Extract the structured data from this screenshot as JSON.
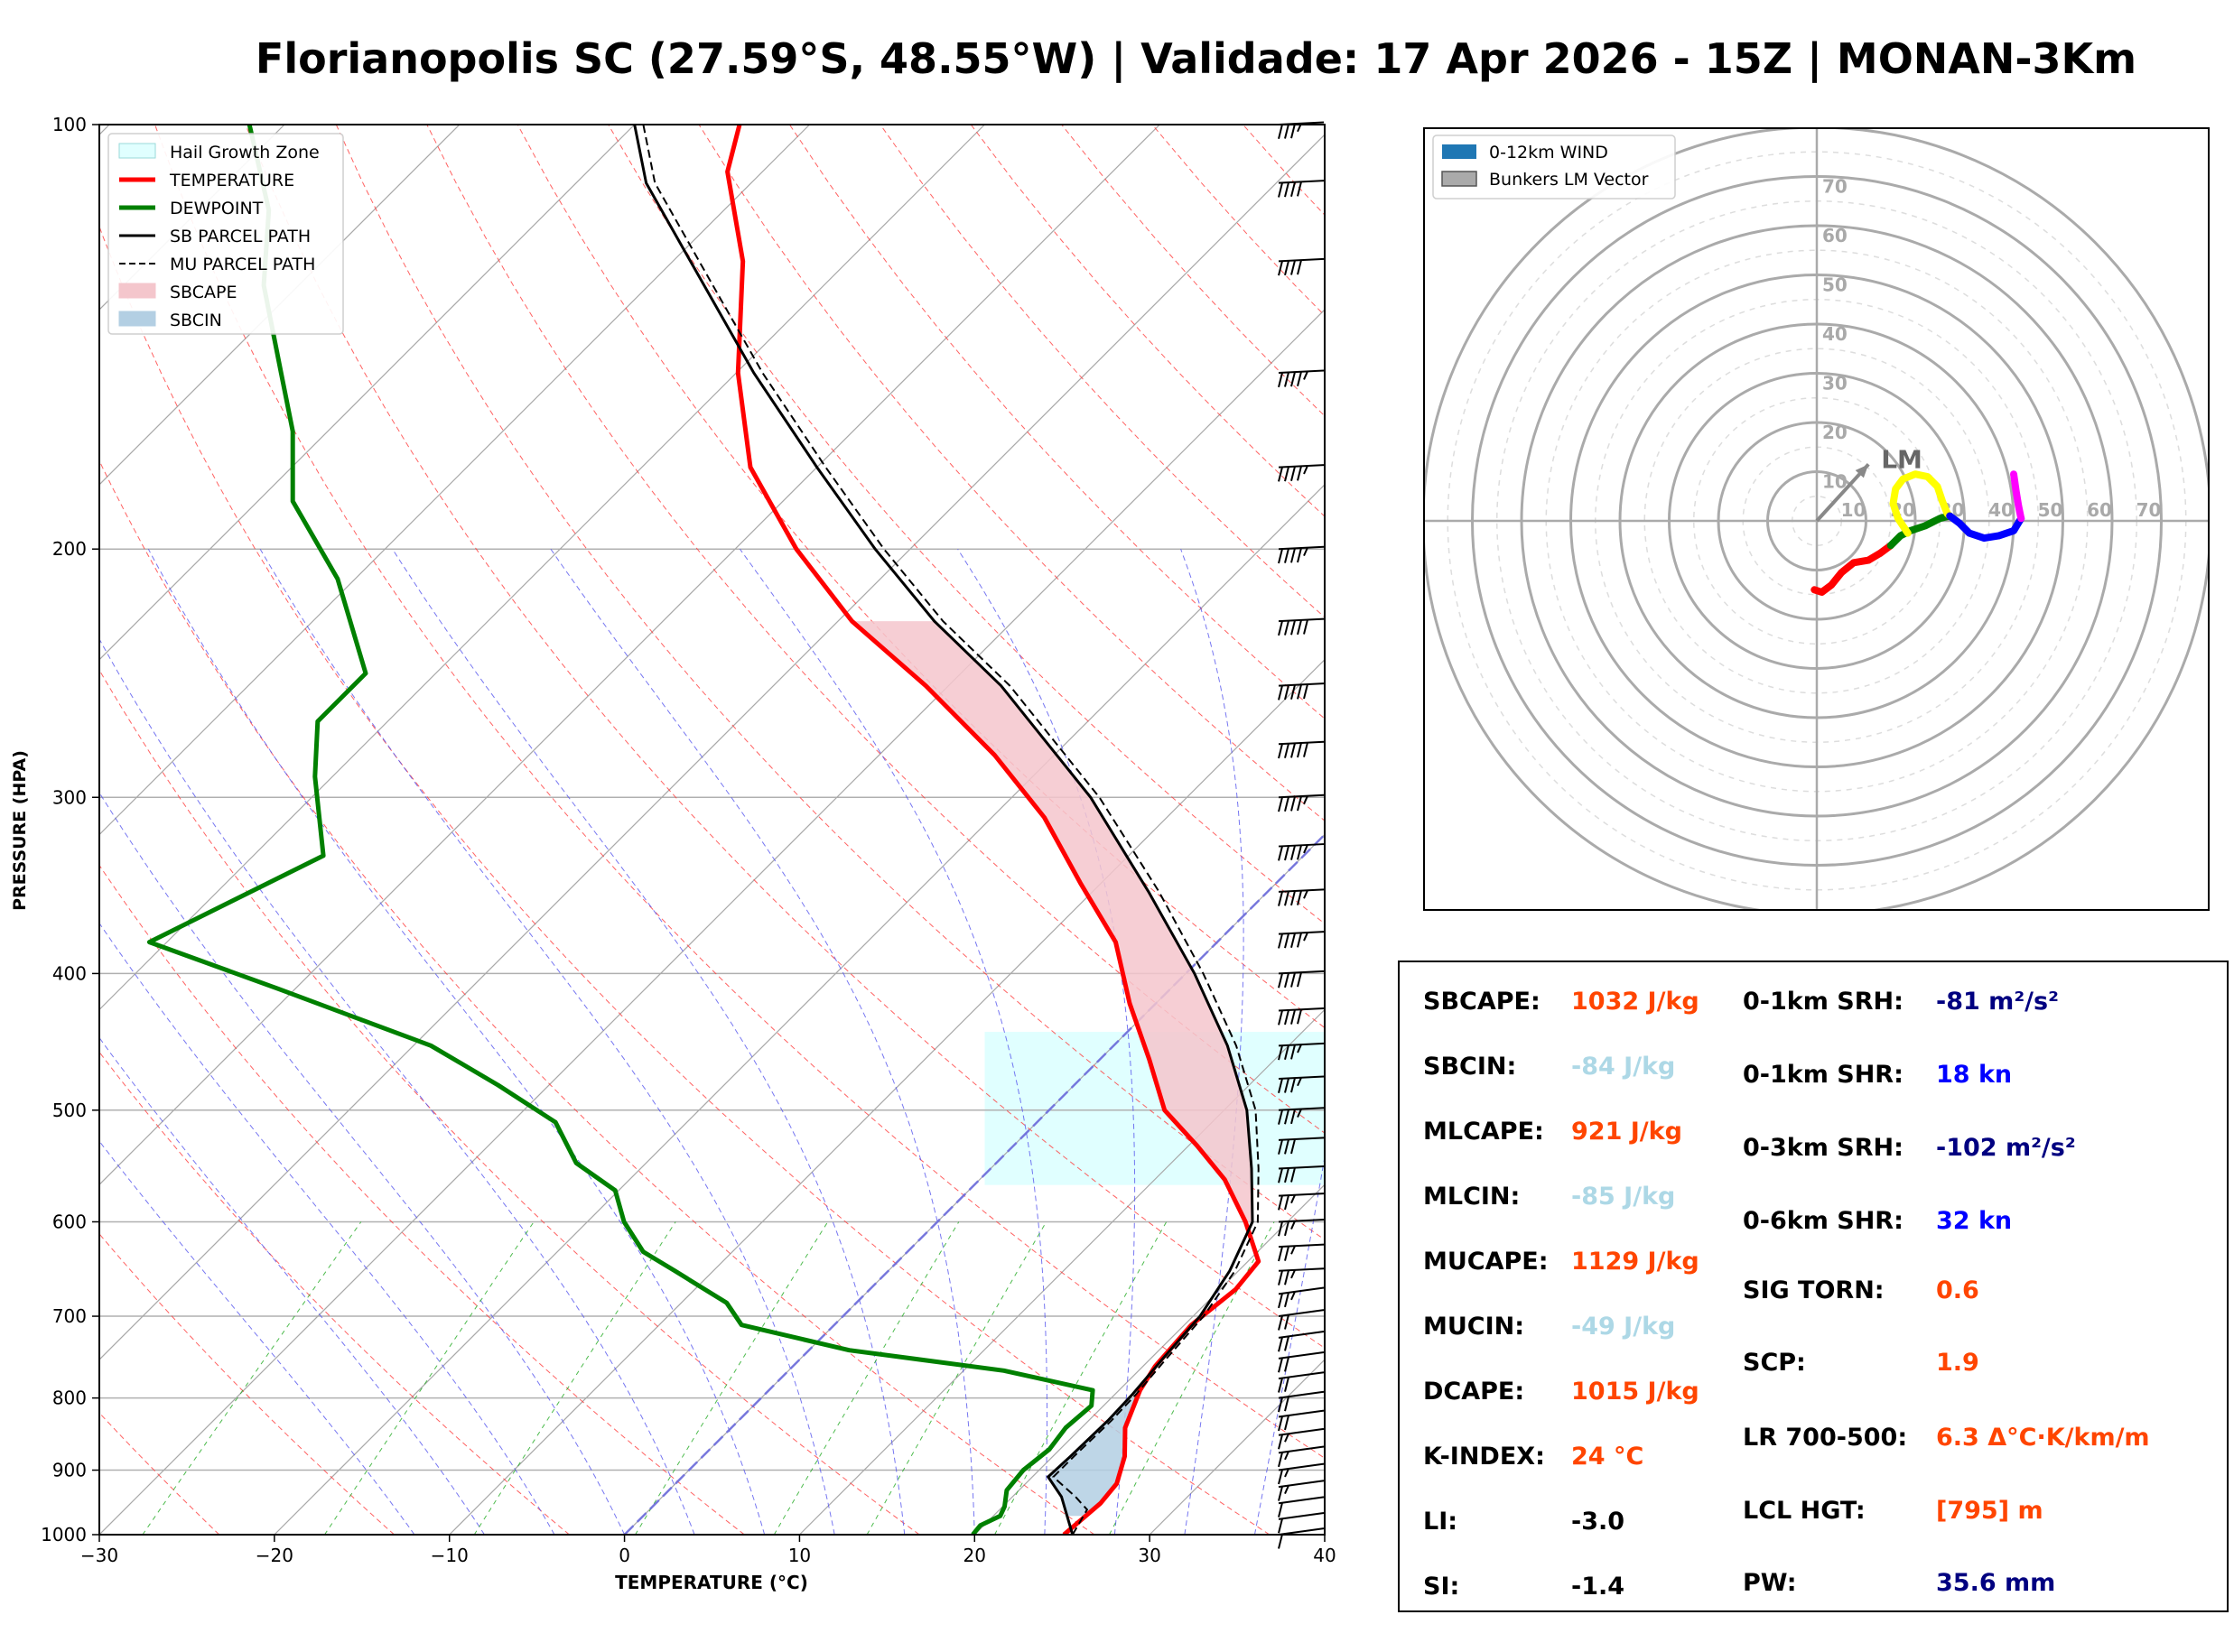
{
  "title": "Florianopolis SC (27.59°S, 48.55°W) | Validade: 17 Apr 2026 - 15Z | MONAN-3Km",
  "colors": {
    "temperature": "#ff0000",
    "dewpoint": "#008000",
    "parcel": "#000000",
    "sbcape": "#f4c6cc",
    "sbcin": "#b3cfe3",
    "hail": "#e0ffff",
    "cape_value": "#ff4500",
    "cin_value": "#add8e6",
    "srh_value": "#000080",
    "shr_value": "#0000ff"
  },
  "chart_data": [
    {
      "type": "line",
      "subtype": "skew-t log-p",
      "xlabel": "TEMPERATURE (°C)",
      "ylabel": "PRESSURE (HPA)",
      "xlim": [
        -30,
        40
      ],
      "ylim": [
        1000,
        100
      ],
      "yscale": "log",
      "xticks": [
        -30,
        -20,
        -10,
        0,
        10,
        20,
        30,
        40
      ],
      "xtick_labels": [
        "−30",
        "−20",
        "−10",
        "0",
        "10",
        "20",
        "30",
        "40"
      ],
      "yticks": [
        100,
        200,
        300,
        400,
        500,
        600,
        700,
        800,
        900,
        1000
      ],
      "legend": {
        "position": "top-left",
        "entries": [
          "Hail Growth Zone",
          "TEMPERATURE",
          "DEWPOINT",
          "SB PARCEL PATH",
          "MU PARCEL PATH",
          "SBCAPE",
          "SBCIN"
        ]
      },
      "hail_growth_zone_hpa": [
        440,
        565
      ],
      "series": [
        {
          "name": "TEMPERATURE",
          "points": [
            [
              1000,
              25.1
            ],
            [
              950,
              25.4
            ],
            [
              920,
              25.2
            ],
            [
              880,
              24.1
            ],
            [
              840,
              22.5
            ],
            [
              790,
              21.2
            ],
            [
              760,
              20.7
            ],
            [
              710,
              20.4
            ],
            [
              670,
              20.9
            ],
            [
              640,
              20.6
            ],
            [
              600,
              17.6
            ],
            [
              560,
              14.0
            ],
            [
              530,
              10.5
            ],
            [
              500,
              6.6
            ],
            [
              460,
              2.8
            ],
            [
              420,
              -1.5
            ],
            [
              380,
              -5.8
            ],
            [
              345,
              -11.2
            ],
            [
              310,
              -17.0
            ],
            [
              280,
              -23.4
            ],
            [
              250,
              -31.3
            ],
            [
              225,
              -39.2
            ],
            [
              200,
              -46.5
            ],
            [
              175,
              -53.8
            ],
            [
              150,
              -59.9
            ],
            [
              125,
              -66.0
            ],
            [
              108,
              -72.0
            ],
            [
              100,
              -74.0
            ]
          ]
        },
        {
          "name": "DEWPOINT",
          "points": [
            [
              1000,
              19.9
            ],
            [
              985,
              19.8
            ],
            [
              970,
              20.4
            ],
            [
              955,
              20.1
            ],
            [
              930,
              19.3
            ],
            [
              900,
              19.1
            ],
            [
              870,
              19.4
            ],
            [
              840,
              19.1
            ],
            [
              810,
              19.3
            ],
            [
              790,
              18.5
            ],
            [
              765,
              12.3
            ],
            [
              740,
              2.3
            ],
            [
              710,
              -5.3
            ],
            [
              685,
              -7.4
            ],
            [
              650,
              -12.2
            ],
            [
              630,
              -15.1
            ],
            [
              600,
              -17.9
            ],
            [
              570,
              -20.2
            ],
            [
              545,
              -24.0
            ],
            [
              510,
              -27.5
            ],
            [
              480,
              -32.9
            ],
            [
              450,
              -39.0
            ],
            [
              410,
              -51.0
            ],
            [
              380,
              -61.0
            ],
            [
              330,
              -56.0
            ],
            [
              290,
              -61.0
            ],
            [
              265,
              -64.0
            ],
            [
              245,
              -64.0
            ],
            [
              210,
              -71.0
            ],
            [
              185,
              -78.0
            ],
            [
              165,
              -82.0
            ],
            [
              150,
              -86.0
            ],
            [
              130,
              -92.0
            ],
            [
              115,
              -96.0
            ],
            [
              100,
              -102.0
            ]
          ]
        },
        {
          "name": "SB PARCEL PATH",
          "points": [
            [
              1000,
              25.6
            ],
            [
              940,
              22.8
            ],
            [
              910,
              20.9
            ],
            [
              880,
              21.0
            ],
            [
              830,
              21.1
            ],
            [
              795,
              21.0
            ],
            [
              750,
              20.7
            ],
            [
              700,
              20.4
            ],
            [
              650,
              19.5
            ],
            [
              600,
              18.0
            ],
            [
              550,
              14.9
            ],
            [
              500,
              11.3
            ],
            [
              450,
              6.5
            ],
            [
              400,
              0.5
            ],
            [
              350,
              -6.8
            ],
            [
              300,
              -15.5
            ],
            [
              250,
              -27.0
            ],
            [
              225,
              -34.5
            ],
            [
              200,
              -42.0
            ],
            [
              175,
              -50.0
            ],
            [
              150,
              -59.0
            ],
            [
              125,
              -69.0
            ],
            [
              110,
              -76.0
            ],
            [
              100,
              -80.0
            ]
          ]
        },
        {
          "name": "MU PARCEL PATH",
          "points": [
            [
              1000,
              25.6
            ],
            [
              960,
              25.0
            ],
            [
              940,
              23.6
            ],
            [
              910,
              21.2
            ],
            [
              880,
              21.2
            ],
            [
              830,
              21.3
            ],
            [
              795,
              21.2
            ],
            [
              750,
              20.9
            ],
            [
              700,
              20.6
            ],
            [
              650,
              19.8
            ],
            [
              600,
              18.3
            ],
            [
              550,
              15.3
            ],
            [
              500,
              11.8
            ],
            [
              450,
              7.0
            ],
            [
              400,
              1.0
            ],
            [
              350,
              -6.2
            ],
            [
              300,
              -15.0
            ],
            [
              250,
              -26.5
            ],
            [
              225,
              -34.0
            ],
            [
              200,
              -41.5
            ],
            [
              175,
              -49.5
            ],
            [
              150,
              -58.5
            ],
            [
              125,
              -68.5
            ],
            [
              110,
              -75.5
            ],
            [
              100,
              -79.5
            ]
          ]
        }
      ],
      "wind_barbs_hpa": [
        1000,
        975,
        950,
        925,
        900,
        875,
        850,
        825,
        800,
        775,
        750,
        725,
        700,
        675,
        650,
        625,
        600,
        575,
        550,
        525,
        500,
        475,
        450,
        425,
        400,
        375,
        350,
        325,
        300,
        275,
        250,
        225,
        200,
        175,
        150,
        125,
        110,
        100
      ],
      "wind_speed_kn": [
        10,
        12,
        14,
        16,
        17,
        18,
        19,
        20,
        21,
        22,
        22,
        23,
        24,
        25,
        26,
        27,
        28,
        29,
        31,
        33,
        35,
        37,
        39,
        41,
        43,
        45,
        47,
        48,
        49,
        50,
        50,
        50,
        49,
        47,
        45,
        42,
        40,
        38
      ]
    },
    {
      "type": "hodograph",
      "ring_labels": [
        "10",
        "20",
        "30",
        "40",
        "50",
        "60",
        "70"
      ],
      "ring_step_kn": 10,
      "max_ring_kn": 80,
      "annotation": "LM",
      "bunkers_lm_vector": [
        10.5,
        11.5
      ],
      "legend": {
        "position": "top-left",
        "entries": [
          "0-12km WIND",
          "Bunkers LM Vector"
        ]
      },
      "segments": [
        {
          "color": "#ff0000",
          "points": [
            [
              -0.5,
              -14
            ],
            [
              1,
              -14.5
            ],
            [
              3,
              -13
            ],
            [
              5,
              -10.5
            ],
            [
              7.5,
              -8.5
            ],
            [
              10.5,
              -8
            ],
            [
              13,
              -6.5
            ],
            [
              15,
              -5
            ]
          ]
        },
        {
          "color": "#008000",
          "points": [
            [
              15,
              -5
            ],
            [
              17,
              -3
            ],
            [
              19,
              -2
            ],
            [
              22,
              -1
            ],
            [
              25,
              0.5
            ],
            [
              27,
              1
            ]
          ]
        },
        {
          "color": "#ffff00",
          "points": [
            [
              18.5,
              -2.5
            ],
            [
              16.5,
              0.5
            ],
            [
              15.5,
              3.5
            ],
            [
              16,
              6.5
            ],
            [
              17.5,
              8.5
            ],
            [
              20,
              9.5
            ],
            [
              22.5,
              9
            ],
            [
              24.5,
              7
            ],
            [
              25.5,
              4
            ],
            [
              26.5,
              1.5
            ],
            [
              27,
              1
            ]
          ]
        },
        {
          "color": "#0000ff",
          "points": [
            [
              27,
              1
            ],
            [
              29,
              -0.5
            ],
            [
              31,
              -2.5
            ],
            [
              34,
              -3.5
            ],
            [
              37,
              -3
            ],
            [
              40,
              -2
            ],
            [
              41.5,
              0.5
            ]
          ]
        },
        {
          "color": "#ff00ff",
          "points": [
            [
              41.5,
              0.5
            ],
            [
              41,
              3
            ],
            [
              40.5,
              6
            ],
            [
              40,
              9.5
            ]
          ]
        }
      ]
    }
  ],
  "stats": {
    "left": [
      {
        "label": "SBCAPE:",
        "value": "1032 J/kg",
        "color": "#ff4500"
      },
      {
        "label": "SBCIN:",
        "value": "-84 J/kg",
        "color": "#add8e6"
      },
      {
        "label": "MLCAPE:",
        "value": "921 J/kg",
        "color": "#ff4500"
      },
      {
        "label": "MLCIN:",
        "value": "-85 J/kg",
        "color": "#add8e6"
      },
      {
        "label": "MUCAPE:",
        "value": "1129 J/kg",
        "color": "#ff4500"
      },
      {
        "label": "MUCIN:",
        "value": "-49 J/kg",
        "color": "#add8e6"
      },
      {
        "label": "DCAPE:",
        "value": "1015 J/kg",
        "color": "#ff4500"
      },
      {
        "label": "K-INDEX:",
        "value": "24 °C",
        "color": "#ff4500"
      },
      {
        "label": "LI:",
        "value": "-3.0",
        "color": "#000000"
      },
      {
        "label": "SI:",
        "value": "-1.4",
        "color": "#000000"
      }
    ],
    "right": [
      {
        "label": "0-1km SRH:",
        "value": "-81 m²/s²",
        "color": "#000080"
      },
      {
        "label": "0-1km SHR:",
        "value": "18 kn",
        "color": "#0000ff"
      },
      {
        "label": "0-3km SRH:",
        "value": "-102 m²/s²",
        "color": "#000080"
      },
      {
        "label": "0-6km SHR:",
        "value": "32 kn",
        "color": "#0000ff"
      },
      {
        "label": "SIG TORN:",
        "value": "0.6",
        "color": "#ff4500"
      },
      {
        "label": "SCP:",
        "value": "1.9",
        "color": "#ff4500"
      },
      {
        "label": "LR 700-500:",
        "value": "6.3 Δ°C·K/km/m",
        "color": "#ff4500"
      },
      {
        "label": "LCL HGT:",
        "value": "[795] m",
        "color": "#ff4500"
      },
      {
        "label": "PW:",
        "value": "35.6 mm",
        "color": "#000080"
      }
    ]
  }
}
